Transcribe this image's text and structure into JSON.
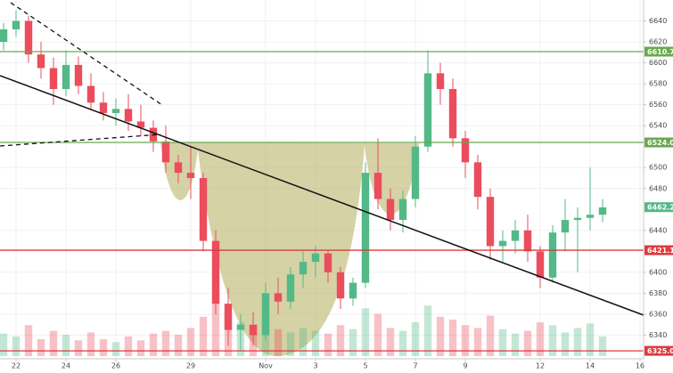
{
  "chart_data": {
    "type": "candlestick",
    "x": [
      -0.5,
      0,
      0.5,
      1,
      1.5,
      2,
      2.5,
      3,
      3.5,
      4,
      4.5,
      5,
      5.5,
      6,
      6.5,
      7,
      7.5,
      8,
      8.5,
      9,
      9.5,
      10,
      10.5,
      11,
      11.5,
      12,
      12.5,
      13,
      13.5,
      14,
      14.5,
      15,
      15.5,
      16,
      16.5,
      17,
      17.5,
      18,
      18.5,
      19,
      19.5,
      20,
      20.5,
      21,
      21.5,
      22,
      22.5,
      23,
      23.5
    ],
    "open": [
      6620,
      6632,
      6640,
      6608,
      6595,
      6575,
      6598,
      6578,
      6562,
      6552,
      6556,
      6544,
      6538,
      6525,
      6505,
      6495,
      6490,
      6430,
      6370,
      6345,
      6350,
      6340,
      6380,
      6372,
      6398,
      6410,
      6418,
      6400,
      6375,
      6390,
      6495,
      6470,
      6450,
      6470,
      6520,
      6590,
      6575,
      6528,
      6505,
      6472,
      6425,
      6430,
      6440,
      6420,
      6395,
      6438,
      6450,
      6452,
      6455
    ],
    "high": [
      6638,
      6650,
      6645,
      6620,
      6605,
      6612,
      6606,
      6590,
      6572,
      6566,
      6570,
      6560,
      6545,
      6540,
      6512,
      6520,
      6495,
      6440,
      6385,
      6360,
      6362,
      6390,
      6395,
      6405,
      6420,
      6425,
      6420,
      6405,
      6395,
      6505,
      6528,
      6480,
      6478,
      6530,
      6612,
      6600,
      6585,
      6535,
      6512,
      6480,
      6440,
      6450,
      6455,
      6425,
      6445,
      6470,
      6462,
      6500,
      6470
    ],
    "low": [
      6612,
      6625,
      6600,
      6585,
      6560,
      6568,
      6570,
      6555,
      6545,
      6540,
      6535,
      6530,
      6515,
      6495,
      6485,
      6470,
      6420,
      6360,
      6330,
      6326,
      6330,
      6335,
      6360,
      6365,
      6385,
      6395,
      6390,
      6365,
      6368,
      6385,
      6460,
      6440,
      6438,
      6462,
      6515,
      6560,
      6520,
      6490,
      6460,
      6412,
      6410,
      6418,
      6410,
      6385,
      6390,
      6420,
      6400,
      6440,
      6448
    ],
    "close": [
      6632,
      6640,
      6608,
      6595,
      6575,
      6598,
      6578,
      6562,
      6552,
      6556,
      6544,
      6538,
      6525,
      6505,
      6495,
      6490,
      6430,
      6370,
      6345,
      6350,
      6340,
      6380,
      6372,
      6398,
      6410,
      6418,
      6400,
      6375,
      6390,
      6495,
      6470,
      6450,
      6470,
      6520,
      6590,
      6575,
      6528,
      6505,
      6472,
      6425,
      6430,
      6440,
      6420,
      6395,
      6438,
      6450,
      6452,
      6455,
      6462
    ],
    "volume": [
      40,
      35,
      55,
      30,
      45,
      38,
      28,
      42,
      30,
      25,
      35,
      28,
      40,
      45,
      38,
      50,
      70,
      95,
      80,
      60,
      55,
      65,
      48,
      42,
      50,
      45,
      40,
      55,
      48,
      85,
      75,
      50,
      45,
      60,
      90,
      70,
      65,
      55,
      50,
      72,
      48,
      40,
      45,
      60,
      55,
      42,
      50,
      58,
      35
    ],
    "up_color": "#53b987",
    "down_color": "#eb4d5c",
    "xlim": [
      -0.643,
      25.143
    ],
    "ylim": [
      6320,
      6660
    ],
    "xticks": [
      {
        "value": 0,
        "label": "22"
      },
      {
        "value": 2,
        "label": "24"
      },
      {
        "value": 4,
        "label": "26"
      },
      {
        "value": 7,
        "label": "29"
      },
      {
        "value": 10,
        "label": "Nov"
      },
      {
        "value": 12,
        "label": "3"
      },
      {
        "value": 14,
        "label": "5"
      },
      {
        "value": 16,
        "label": "7"
      },
      {
        "value": 18,
        "label": "9"
      },
      {
        "value": 21,
        "label": "12"
      },
      {
        "value": 23,
        "label": "14"
      },
      {
        "value": 25,
        "label": "16"
      }
    ],
    "yticks": [
      6340,
      6360,
      6380,
      6400,
      6440,
      6480,
      6500,
      6540,
      6560,
      6580,
      6600,
      6620,
      6640
    ],
    "grid": true,
    "levels": [
      {
        "value": 6610.7,
        "label": "6610.7",
        "color": "#6aa84f"
      },
      {
        "value": 6524.0,
        "label": "6524.0",
        "color": "#6aa84f"
      },
      {
        "value": 6421.1,
        "label": "6421.1",
        "color": "#e0393e"
      },
      {
        "value": 6325.0,
        "label": "6325.0",
        "color": "#e0393e"
      }
    ],
    "last_price": {
      "value": 6462.2,
      "label": "6462.2",
      "color": "#53b987"
    }
  }
}
